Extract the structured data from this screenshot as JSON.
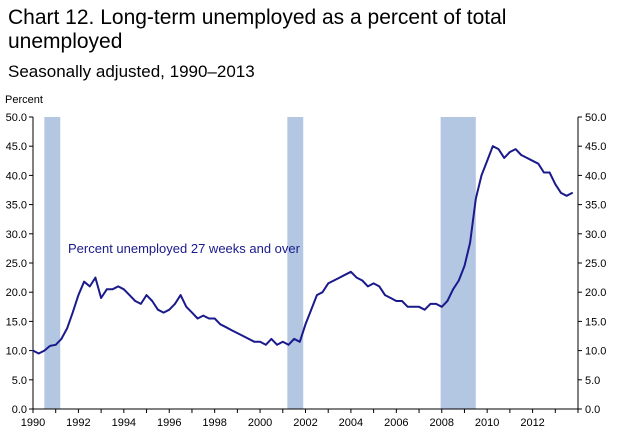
{
  "chart_data": {
    "type": "line",
    "title": "Chart 12.  Long-term unemployed as a percent of total unemployed",
    "subtitle": "Seasonally adjusted, 1990–2013",
    "ylabel": "Percent",
    "xlabel": "",
    "ylim": [
      0,
      50
    ],
    "yticks": [
      0,
      5,
      10,
      15,
      20,
      25,
      30,
      35,
      40,
      45,
      50
    ],
    "ytick_labels": [
      "0.0",
      "5.0",
      "10.0",
      "15.0",
      "20.0",
      "25.0",
      "30.0",
      "35.0",
      "40.0",
      "45.0",
      "50.0"
    ],
    "xlim": [
      1990,
      2014
    ],
    "xticks": [
      1990,
      1992,
      1994,
      1996,
      1998,
      2000,
      2002,
      2004,
      2006,
      2008,
      2010,
      2012
    ],
    "xtick_labels": [
      "1990",
      "1992",
      "1994",
      "1996",
      "1998",
      "2000",
      "2002",
      "2004",
      "2006",
      "2008",
      "2010",
      "2012"
    ],
    "recessions": [
      {
        "start": 1990.5,
        "end": 1991.2
      },
      {
        "start": 2001.2,
        "end": 2001.9
      },
      {
        "start": 2007.95,
        "end": 2009.5
      }
    ],
    "annotation": "Percent unemployed 27 weeks and over",
    "line_color": "#1a1a8c",
    "recession_color": "#b3c7e3",
    "series": [
      {
        "name": "Percent unemployed 27 weeks and over",
        "x": [
          1990.0,
          1990.25,
          1990.5,
          1990.75,
          1991.0,
          1991.25,
          1991.5,
          1991.75,
          1992.0,
          1992.25,
          1992.5,
          1992.75,
          1993.0,
          1993.25,
          1993.5,
          1993.75,
          1994.0,
          1994.25,
          1994.5,
          1994.75,
          1995.0,
          1995.25,
          1995.5,
          1995.75,
          1996.0,
          1996.25,
          1996.5,
          1996.75,
          1997.0,
          1997.25,
          1997.5,
          1997.75,
          1998.0,
          1998.25,
          1998.5,
          1998.75,
          1999.0,
          1999.25,
          1999.5,
          1999.75,
          2000.0,
          2000.25,
          2000.5,
          2000.75,
          2001.0,
          2001.25,
          2001.5,
          2001.75,
          2002.0,
          2002.25,
          2002.5,
          2002.75,
          2003.0,
          2003.25,
          2003.5,
          2003.75,
          2004.0,
          2004.25,
          2004.5,
          2004.75,
          2005.0,
          2005.25,
          2005.5,
          2005.75,
          2006.0,
          2006.25,
          2006.5,
          2006.75,
          2007.0,
          2007.25,
          2007.5,
          2007.75,
          2008.0,
          2008.25,
          2008.5,
          2008.75,
          2009.0,
          2009.25,
          2009.5,
          2009.75,
          2010.0,
          2010.25,
          2010.5,
          2010.75,
          2011.0,
          2011.25,
          2011.5,
          2011.75,
          2012.0,
          2012.25,
          2012.5,
          2012.75,
          2013.0,
          2013.25,
          2013.5,
          2013.75
        ],
        "values": [
          10.0,
          9.5,
          10.0,
          10.8,
          11.0,
          12.0,
          13.8,
          16.5,
          19.5,
          21.8,
          21.0,
          22.5,
          19.0,
          20.5,
          20.5,
          21.0,
          20.5,
          19.5,
          18.5,
          18.0,
          19.5,
          18.5,
          17.0,
          16.5,
          17.0,
          18.0,
          19.5,
          17.5,
          16.5,
          15.5,
          16.0,
          15.5,
          15.5,
          14.5,
          14.0,
          13.5,
          13.0,
          12.5,
          12.0,
          11.5,
          11.5,
          11.0,
          12.0,
          11.0,
          11.5,
          11.0,
          12.0,
          11.5,
          14.5,
          17.0,
          19.5,
          20.0,
          21.5,
          22.0,
          22.5,
          23.0,
          23.5,
          22.5,
          22.0,
          21.0,
          21.5,
          21.0,
          19.5,
          19.0,
          18.5,
          18.5,
          17.5,
          17.5,
          17.5,
          17.0,
          18.0,
          18.0,
          17.5,
          18.5,
          20.5,
          22.0,
          24.5,
          28.5,
          36.0,
          40.0,
          42.5,
          45.0,
          44.5,
          43.0,
          44.0,
          44.5,
          43.5,
          43.0,
          42.5,
          42.0,
          40.5,
          40.5,
          38.5,
          37.0,
          36.5,
          37.0
        ]
      }
    ]
  }
}
